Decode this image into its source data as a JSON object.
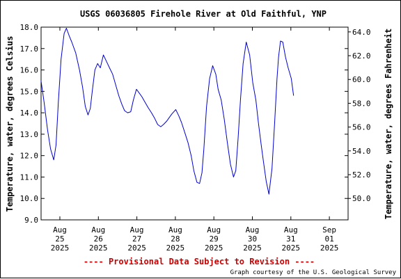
{
  "chart_data": {
    "type": "line",
    "title": "USGS 06036805 Firehole River at Old Faithful, YNP",
    "ylabel": "Temperature, water, degrees Celsius",
    "y2label": "Temperature, water, degrees Fahrenheit",
    "ylim": [
      9.0,
      18.0
    ],
    "y2lim": [
      48.2,
      64.4
    ],
    "xlim": [
      0,
      7.5
    ],
    "yticks": [
      "9.0",
      "10.0",
      "11.0",
      "12.0",
      "13.0",
      "14.0",
      "15.0",
      "16.0",
      "17.0",
      "18.0"
    ],
    "y2ticks": [
      "50.0",
      "52.0",
      "54.0",
      "56.0",
      "58.0",
      "60.0",
      "62.0",
      "64.0"
    ],
    "xticks": [
      {
        "month": "Aug",
        "day": "25",
        "year": "2025"
      },
      {
        "month": "Aug",
        "day": "26",
        "year": "2025"
      },
      {
        "month": "Aug",
        "day": "27",
        "year": "2025"
      },
      {
        "month": "Aug",
        "day": "28",
        "year": "2025"
      },
      {
        "month": "Aug",
        "day": "29",
        "year": "2025"
      },
      {
        "month": "Aug",
        "day": "30",
        "year": "2025"
      },
      {
        "month": "Aug",
        "day": "31",
        "year": "2025"
      },
      {
        "month": "Sep",
        "day": "01",
        "year": "2025"
      }
    ],
    "grid": false,
    "line_color": "#0000cc",
    "series": [
      {
        "x": [
          0.0,
          0.08,
          0.17,
          0.25,
          0.33,
          0.39,
          0.45,
          0.52,
          0.6,
          0.66,
          0.73,
          0.8,
          0.9,
          1.0,
          1.08,
          1.15,
          1.22,
          1.28,
          1.33,
          1.4,
          1.47,
          1.54,
          1.62,
          1.7,
          1.78,
          1.86,
          1.94,
          2.02,
          2.1,
          2.17,
          2.25,
          2.33,
          2.4,
          2.48,
          2.56,
          2.62,
          2.7,
          2.78,
          2.87,
          2.95,
          3.03,
          3.11,
          3.18,
          3.26,
          3.32,
          3.4,
          3.5,
          3.58,
          3.65,
          3.73,
          3.82,
          3.9,
          3.97,
          4.05,
          4.12,
          4.18,
          4.23,
          4.3,
          4.38,
          4.46,
          4.54,
          4.6,
          4.68,
          4.76,
          4.84,
          4.92,
          5.0,
          5.06,
          5.12,
          5.18,
          5.25,
          5.33,
          5.42,
          5.5,
          5.58,
          5.65,
          5.72,
          5.78,
          5.85,
          5.92,
          6.0,
          6.07,
          6.13,
          6.17,
          6.22,
          6.28,
          6.35,
          6.42,
          6.5,
          6.56
        ],
        "y": [
          15.5,
          14.5,
          13.2,
          12.3,
          11.8,
          12.5,
          14.5,
          16.5,
          17.7,
          17.95,
          17.6,
          17.3,
          16.8,
          16.0,
          15.2,
          14.3,
          13.9,
          14.2,
          15.0,
          16.0,
          16.3,
          16.1,
          16.7,
          16.4,
          16.1,
          15.8,
          15.3,
          14.8,
          14.4,
          14.1,
          14.0,
          14.05,
          14.6,
          15.1,
          14.9,
          14.75,
          14.5,
          14.25,
          14.0,
          13.75,
          13.45,
          13.35,
          13.45,
          13.6,
          13.75,
          13.95,
          14.15,
          13.85,
          13.55,
          13.1,
          12.6,
          12.0,
          11.3,
          10.75,
          10.7,
          11.2,
          12.3,
          14.3,
          15.6,
          16.2,
          15.8,
          15.1,
          14.6,
          13.7,
          12.6,
          11.6,
          11.0,
          11.3,
          12.8,
          14.6,
          16.3,
          17.3,
          16.7,
          15.4,
          14.6,
          13.5,
          12.5,
          11.7,
          10.8,
          10.2,
          11.4,
          13.6,
          15.6,
          16.6,
          17.35,
          17.3,
          16.6,
          16.1,
          15.6,
          14.8
        ]
      }
    ]
  },
  "footer": {
    "provisional": "---- Provisional Data Subject to Revision ----",
    "credit": "Graph courtesy of the U.S. Geological Survey"
  }
}
